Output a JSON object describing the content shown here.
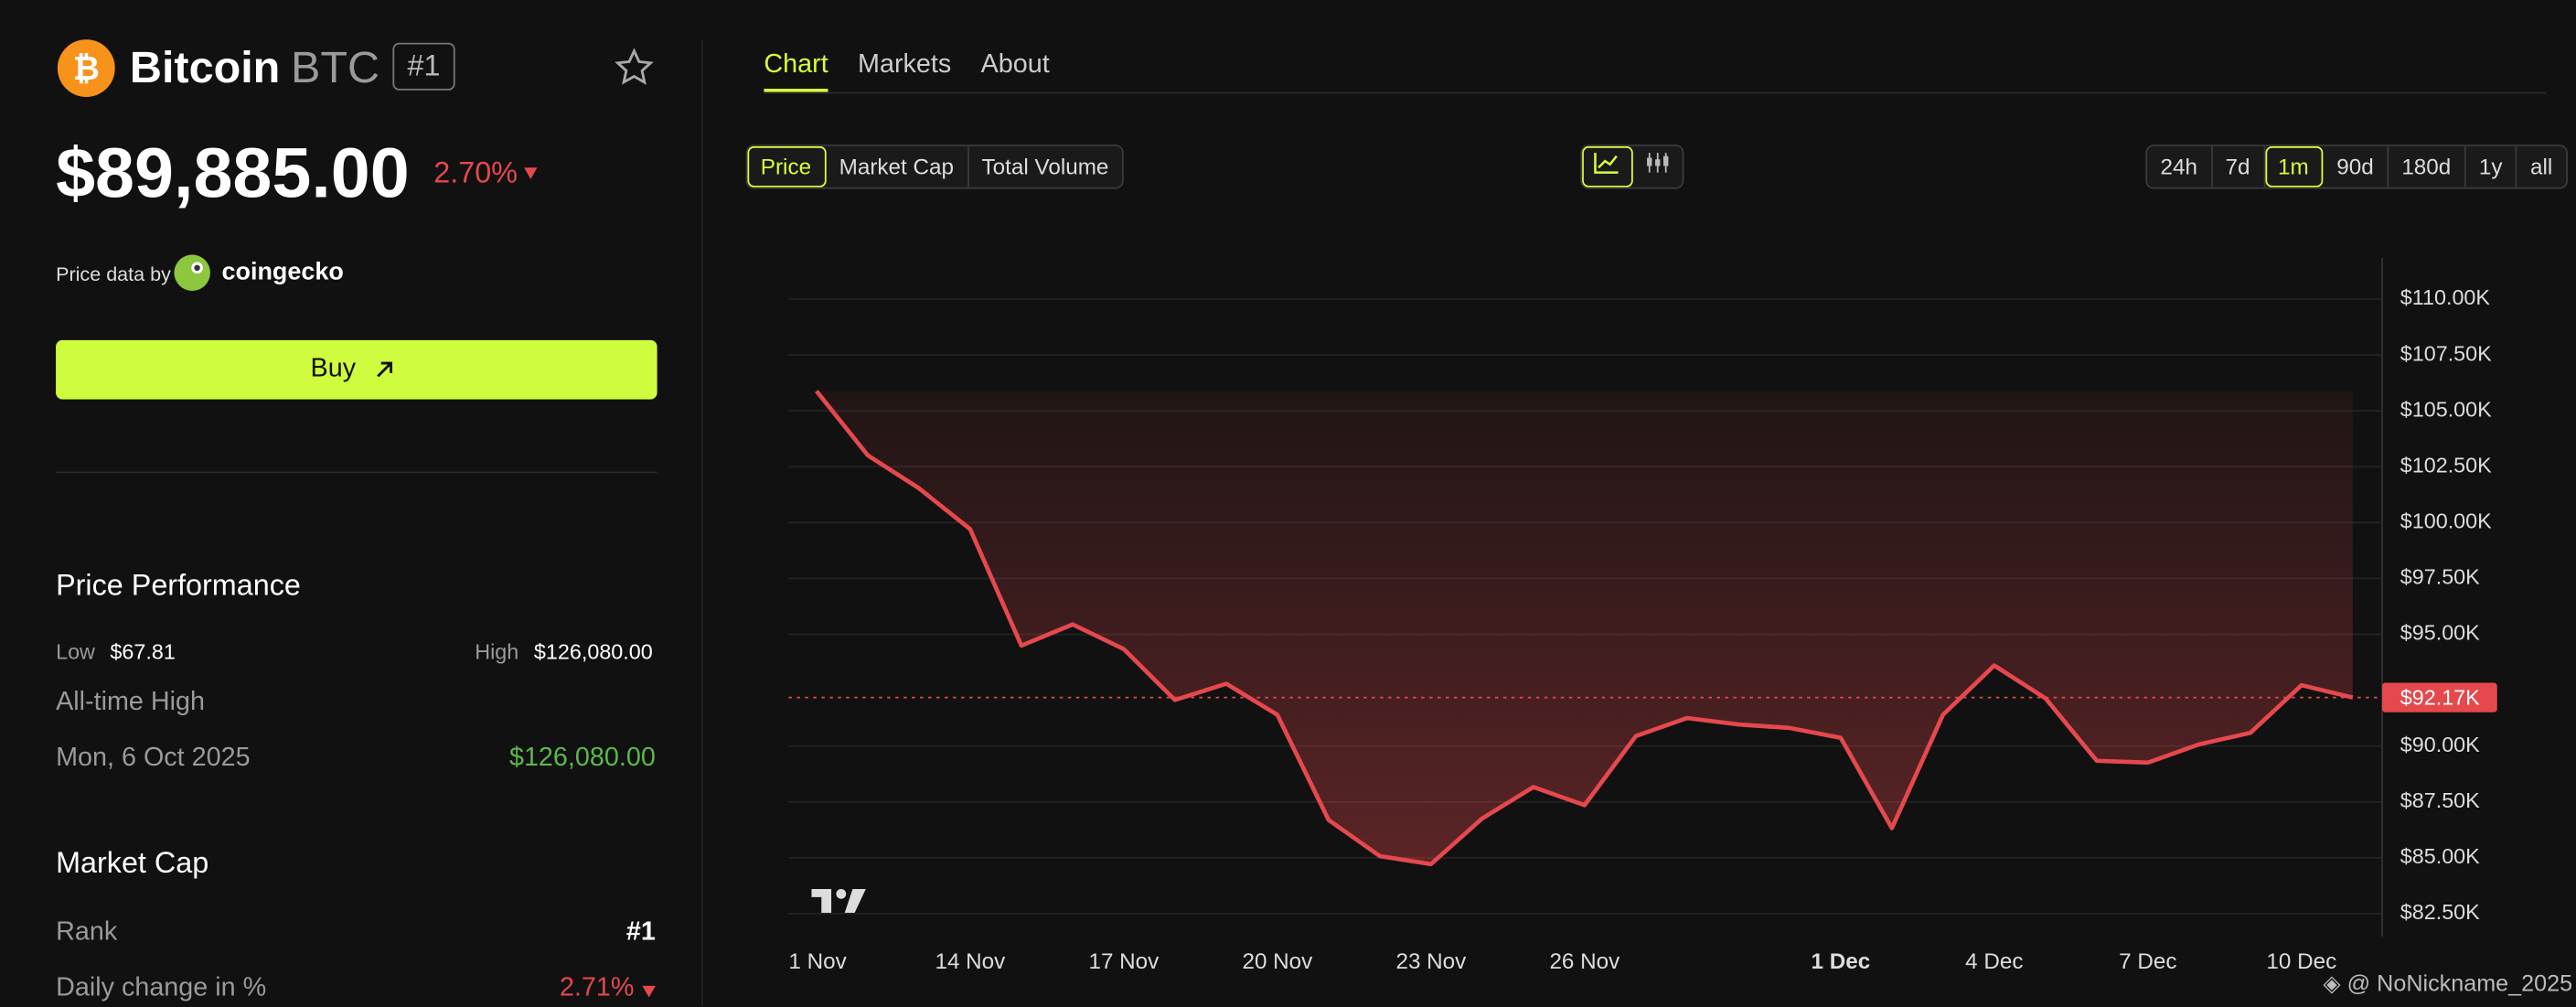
{
  "header": {
    "name": "Bitcoin",
    "symbol": "BTC",
    "rank": "#1",
    "price": "$89,885.00",
    "change": "2.70%",
    "price_data_by": "Price data by",
    "provider": "coingecko",
    "buy": "Buy"
  },
  "price_performance": {
    "title": "Price Performance",
    "low_label": "Low",
    "low": "$67.81",
    "high_label": "High",
    "high": "$126,080.00",
    "ath_label": "All-time High",
    "ath_date": "Mon, 6 Oct 2025",
    "ath_value": "$126,080.00"
  },
  "market_cap": {
    "title": "Market Cap",
    "rank_label": "Rank",
    "rank": "#1",
    "daily_change_label": "Daily change in %",
    "daily_change": "2.71%"
  },
  "tabs": [
    "Chart",
    "Markets",
    "About"
  ],
  "metric_buttons": [
    "Price",
    "Market Cap",
    "Total Volume"
  ],
  "range_buttons": [
    "24h",
    "7d",
    "1m",
    "90d",
    "180d",
    "1y",
    "all"
  ],
  "watermark": "@ NoNickname_2025",
  "chart_data": {
    "type": "line",
    "categories": [
      "1 Nov",
      null,
      null,
      "14 Nov",
      null,
      null,
      "17 Nov",
      null,
      null,
      "20 Nov",
      null,
      null,
      "23 Nov",
      null,
      null,
      "26 Nov",
      null,
      null,
      null,
      null,
      "1 Dec",
      null,
      null,
      "4 Dec",
      null,
      null,
      "7 Dec",
      null,
      null,
      "10 Dec",
      null
    ],
    "series": [
      {
        "name": "BTC",
        "color": "#e5484d",
        "values": [
          105880,
          103010,
          101540,
          99710,
          94490,
          95440,
          94340,
          92060,
          92790,
          91400,
          86690,
          85070,
          84710,
          86760,
          88160,
          87350,
          90440,
          91250,
          90960,
          90810,
          90370,
          86320,
          91400,
          93600,
          92130,
          89340,
          89260,
          90070,
          90590,
          92720,
          92170
        ]
      }
    ],
    "current_price": {
      "value": 92170,
      "label": "$92.17K"
    },
    "ylim": [
      81470,
      111840
    ],
    "yticks": [
      {
        "value": 82500,
        "label": "$82.50K"
      },
      {
        "value": 85000,
        "label": "$85.00K"
      },
      {
        "value": 87500,
        "label": "$87.50K"
      },
      {
        "value": 90000,
        "label": "$90.00K"
      },
      {
        "value": 95000,
        "label": "$95.00K"
      },
      {
        "value": 97500,
        "label": "$97.50K"
      },
      {
        "value": 100000,
        "label": "$100.00K"
      },
      {
        "value": 102500,
        "label": "$102.50K"
      },
      {
        "value": 105000,
        "label": "$105.00K"
      },
      {
        "value": 107500,
        "label": "$107.50K"
      },
      {
        "value": 110000,
        "label": "$110.00K"
      }
    ],
    "grid": true
  }
}
